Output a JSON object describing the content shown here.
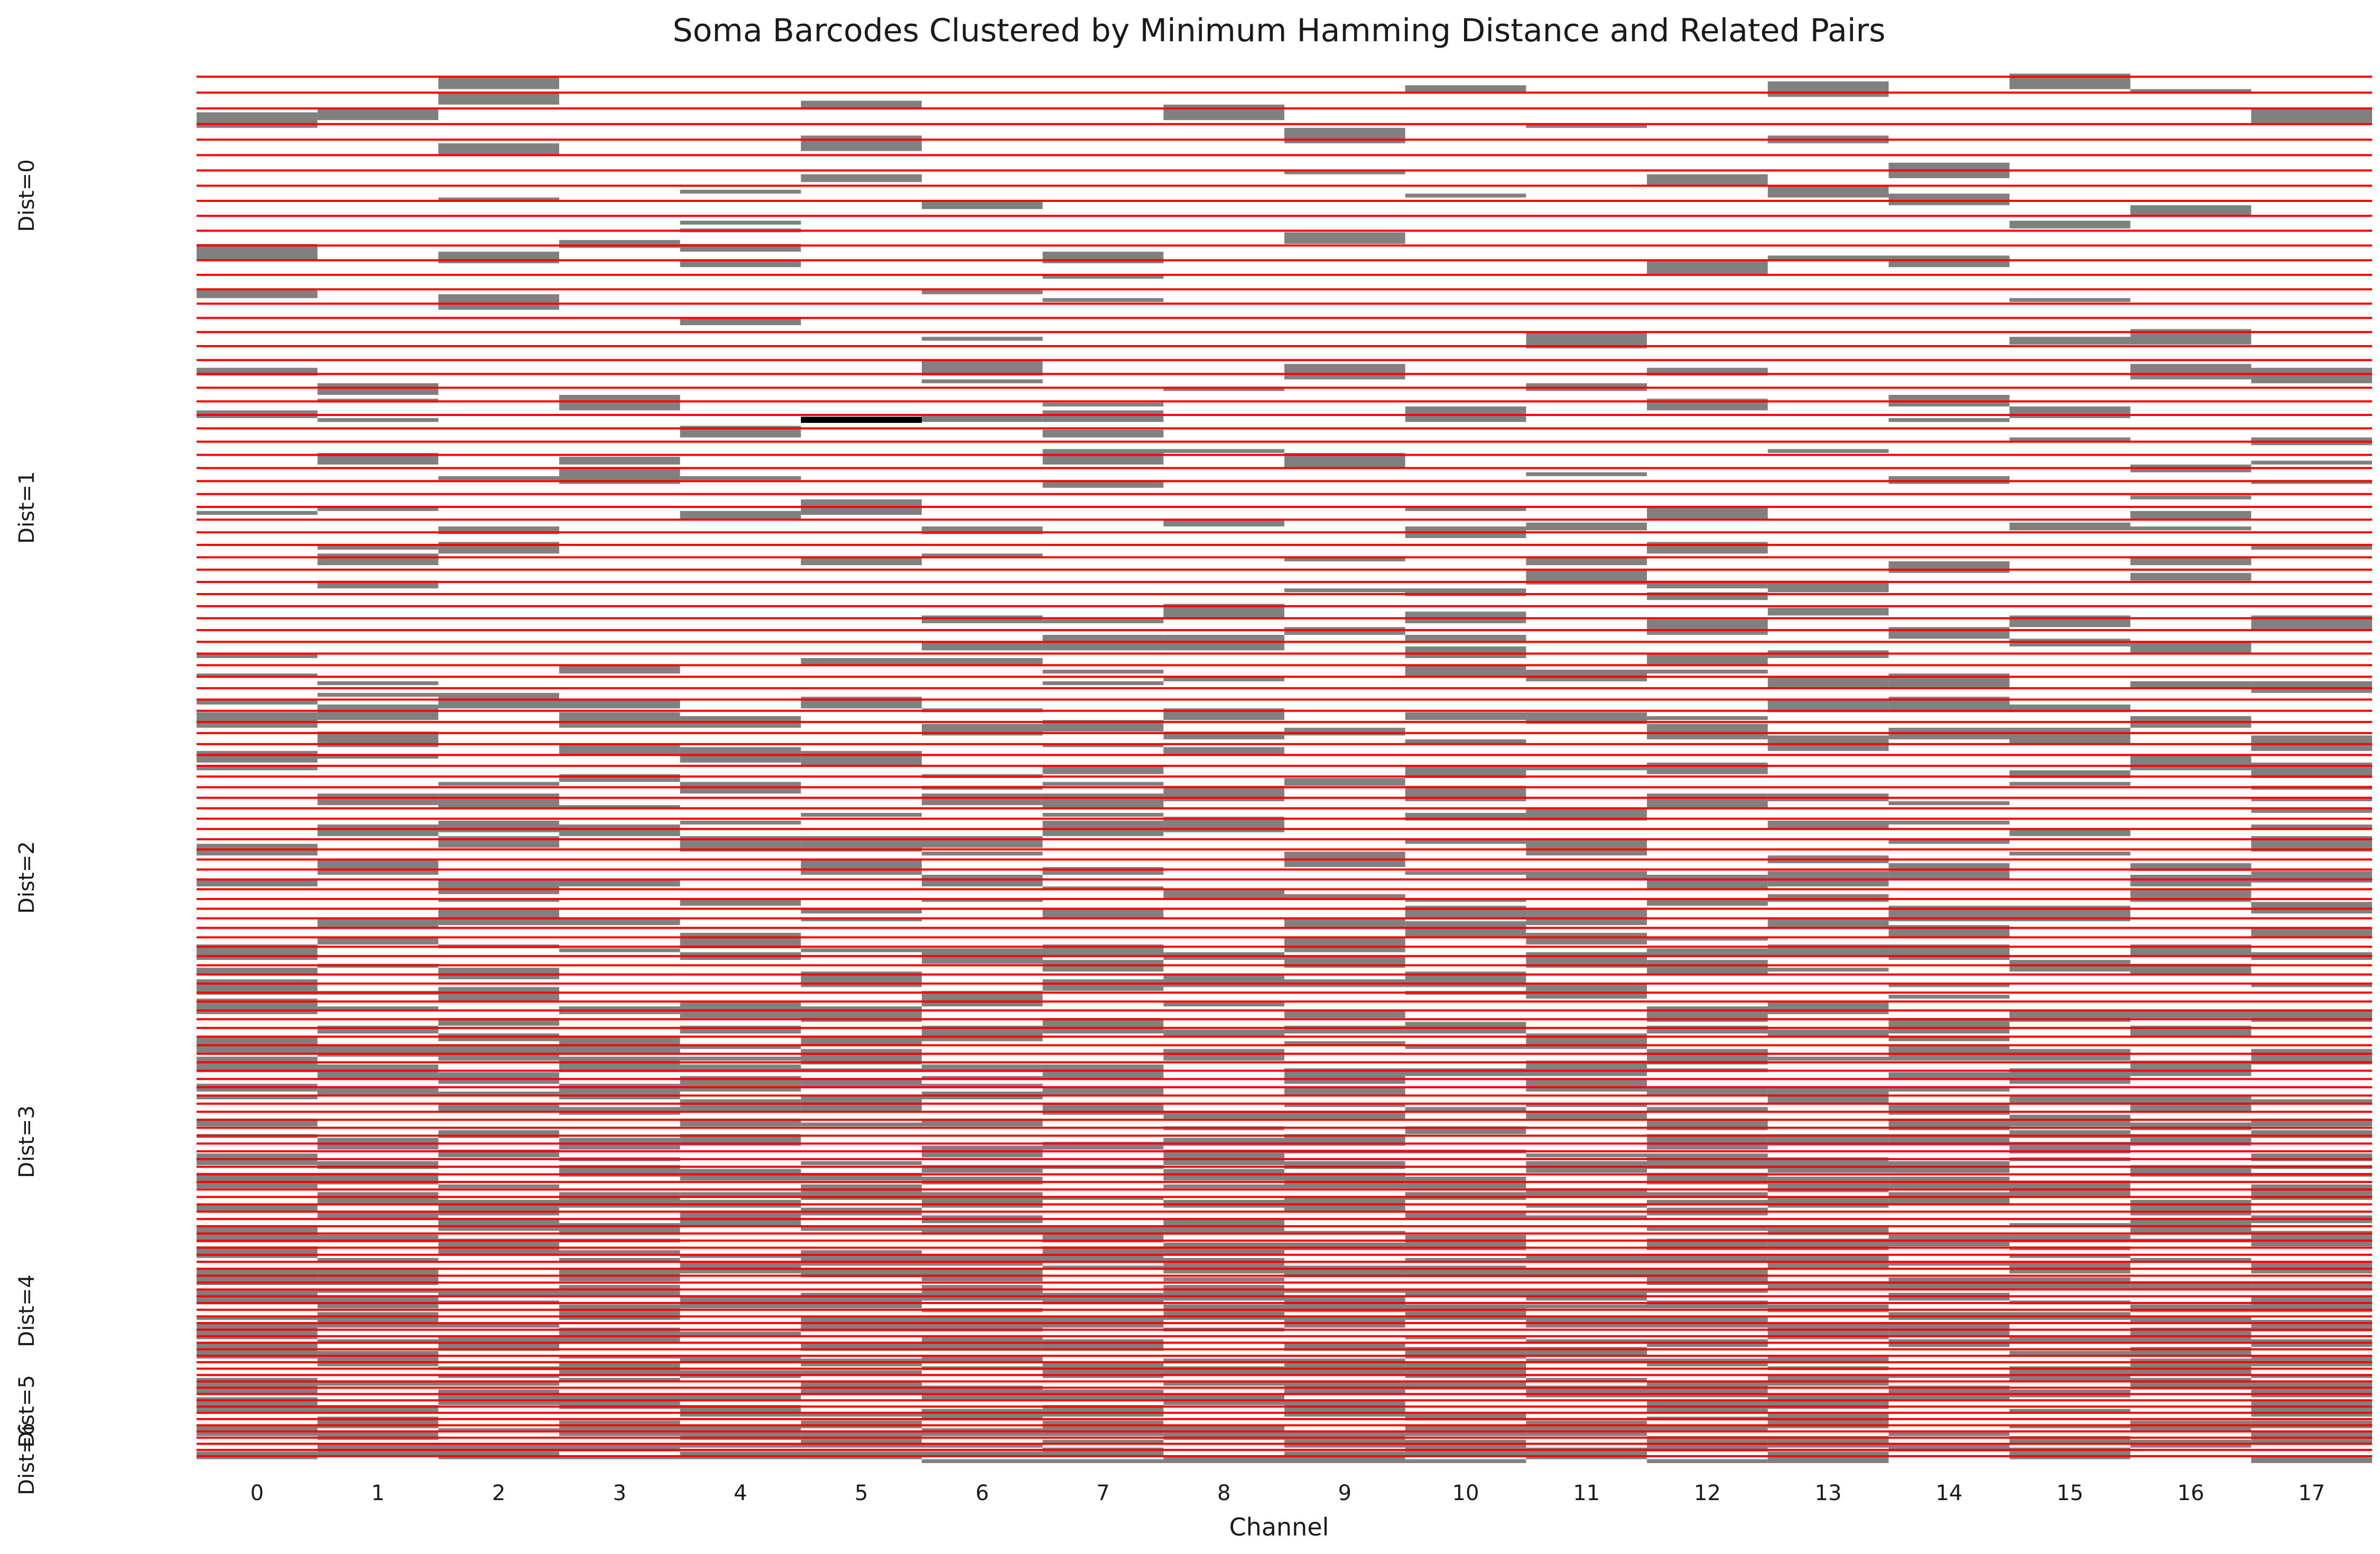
{
  "chart_data": {
    "type": "heatmap",
    "title": "Soma Barcodes Clustered by Minimum Hamming Distance and Related Pairs",
    "xlabel": "Channel",
    "ylabel": "",
    "x_ticks": [
      "0",
      "1",
      "2",
      "3",
      "4",
      "5",
      "6",
      "7",
      "8",
      "9",
      "10",
      "11",
      "12",
      "13",
      "14",
      "15",
      "16",
      "17"
    ],
    "cell_color": "#808080",
    "highlight_color": "#000000",
    "separator_color": "#ff0000",
    "background_color": "#ffffff",
    "row_count": 360,
    "separator_count": 140,
    "groups": [
      {
        "label": "Dist=0"
      },
      {
        "label": "Dist=1"
      },
      {
        "label": "Dist=2"
      },
      {
        "label": "Dist=3"
      },
      {
        "label": "Dist=4"
      },
      {
        "label": "Dist=5"
      },
      {
        "label": "Dist=6"
      }
    ]
  }
}
